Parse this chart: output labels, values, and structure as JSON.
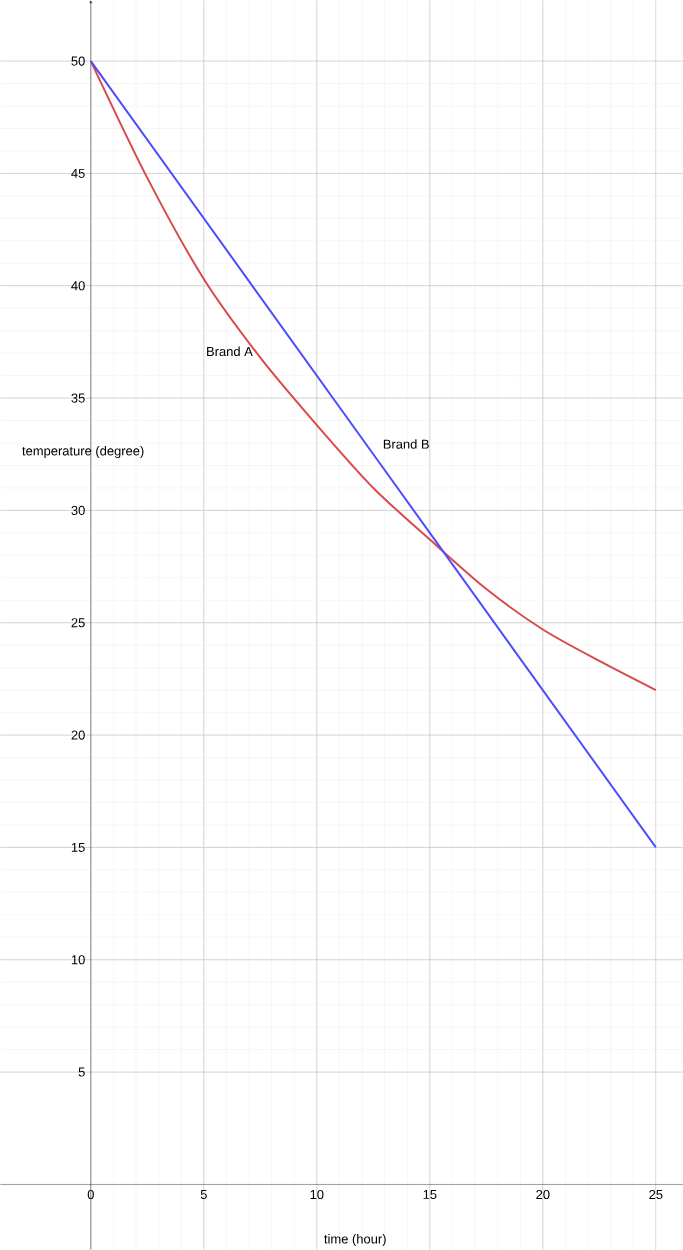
{
  "chart_data": {
    "type": "line",
    "xlabel": "time (hour)",
    "ylabel": "temperature (degree)",
    "xlim": [
      -4,
      26.2
    ],
    "ylim": [
      -2.9,
      52.7
    ],
    "xticks": [
      0,
      5,
      10,
      15,
      20,
      25
    ],
    "yticks": [
      5,
      10,
      15,
      20,
      25,
      30,
      35,
      40,
      45,
      50
    ],
    "grid": true,
    "series": [
      {
        "name": "Brand A",
        "color": "#d94a4a",
        "x": [
          0,
          2.5,
          5,
          7.5,
          10,
          12.5,
          15,
          17.5,
          20,
          22.5,
          25
        ],
        "values": [
          50,
          44.8,
          40.3,
          36.8,
          33.8,
          31.0,
          28.7,
          26.5,
          24.7,
          23.3,
          22.0
        ]
      },
      {
        "name": "Brand B",
        "color": "#4d4dff",
        "x": [
          0,
          12.5,
          25
        ],
        "values": [
          50,
          32.5,
          15
        ]
      }
    ]
  }
}
